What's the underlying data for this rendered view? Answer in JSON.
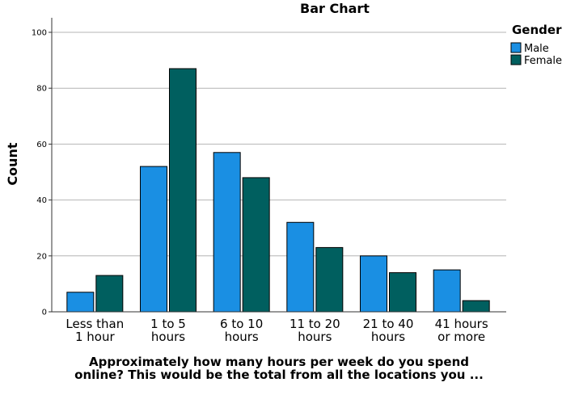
{
  "chart_data": {
    "type": "bar",
    "title": "Bar Chart",
    "xlabel": "Approximately how many hours per week do you spend online? This would be the total from all the locations you ...",
    "xlabel_lines": [
      "Approximately how many hours per week do you spend",
      "online? This would be the total from all the locations you ..."
    ],
    "ylabel": "Count",
    "ylim": [
      0,
      100
    ],
    "yticks": [
      0,
      20,
      40,
      60,
      80,
      100
    ],
    "grid": true,
    "legend_title": "Gender",
    "legend_position": "top-right",
    "categories": [
      [
        "Less than",
        "1 hour"
      ],
      [
        "1 to 5",
        "hours"
      ],
      [
        "6 to 10",
        "hours"
      ],
      [
        "11 to 20",
        "hours"
      ],
      [
        "21 to 40",
        "hours"
      ],
      [
        "41 hours",
        "or more"
      ]
    ],
    "series": [
      {
        "name": "Male",
        "color": "#1a8fe3",
        "values": [
          7,
          52,
          57,
          32,
          20,
          15
        ]
      },
      {
        "name": "Female",
        "color": "#005f5f",
        "values": [
          13,
          87,
          48,
          23,
          14,
          4
        ]
      }
    ]
  }
}
